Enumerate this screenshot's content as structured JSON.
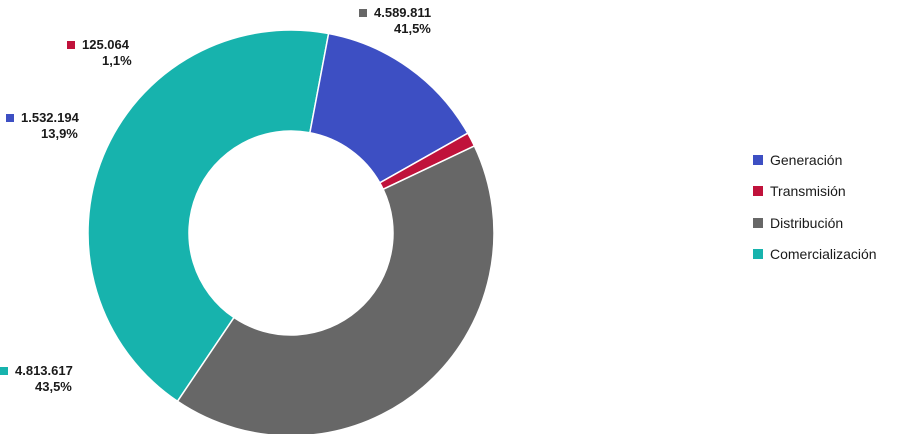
{
  "chart_data": {
    "type": "pie",
    "donut": true,
    "legend_position": "right",
    "categories": [
      "Generación",
      "Transmisión",
      "Distribución",
      "Comercialización"
    ],
    "values": [
      1532194,
      125064,
      4589811,
      4813617
    ],
    "value_labels": [
      "1.532.194",
      "125.064",
      "4.589.811",
      "4.813.617"
    ],
    "percent_labels": [
      "13,9%",
      "1,1%",
      "41,5%",
      "43,5%"
    ],
    "colors": [
      "#3d4fc3",
      "#c0123b",
      "#676767",
      "#17b3ad"
    ]
  }
}
